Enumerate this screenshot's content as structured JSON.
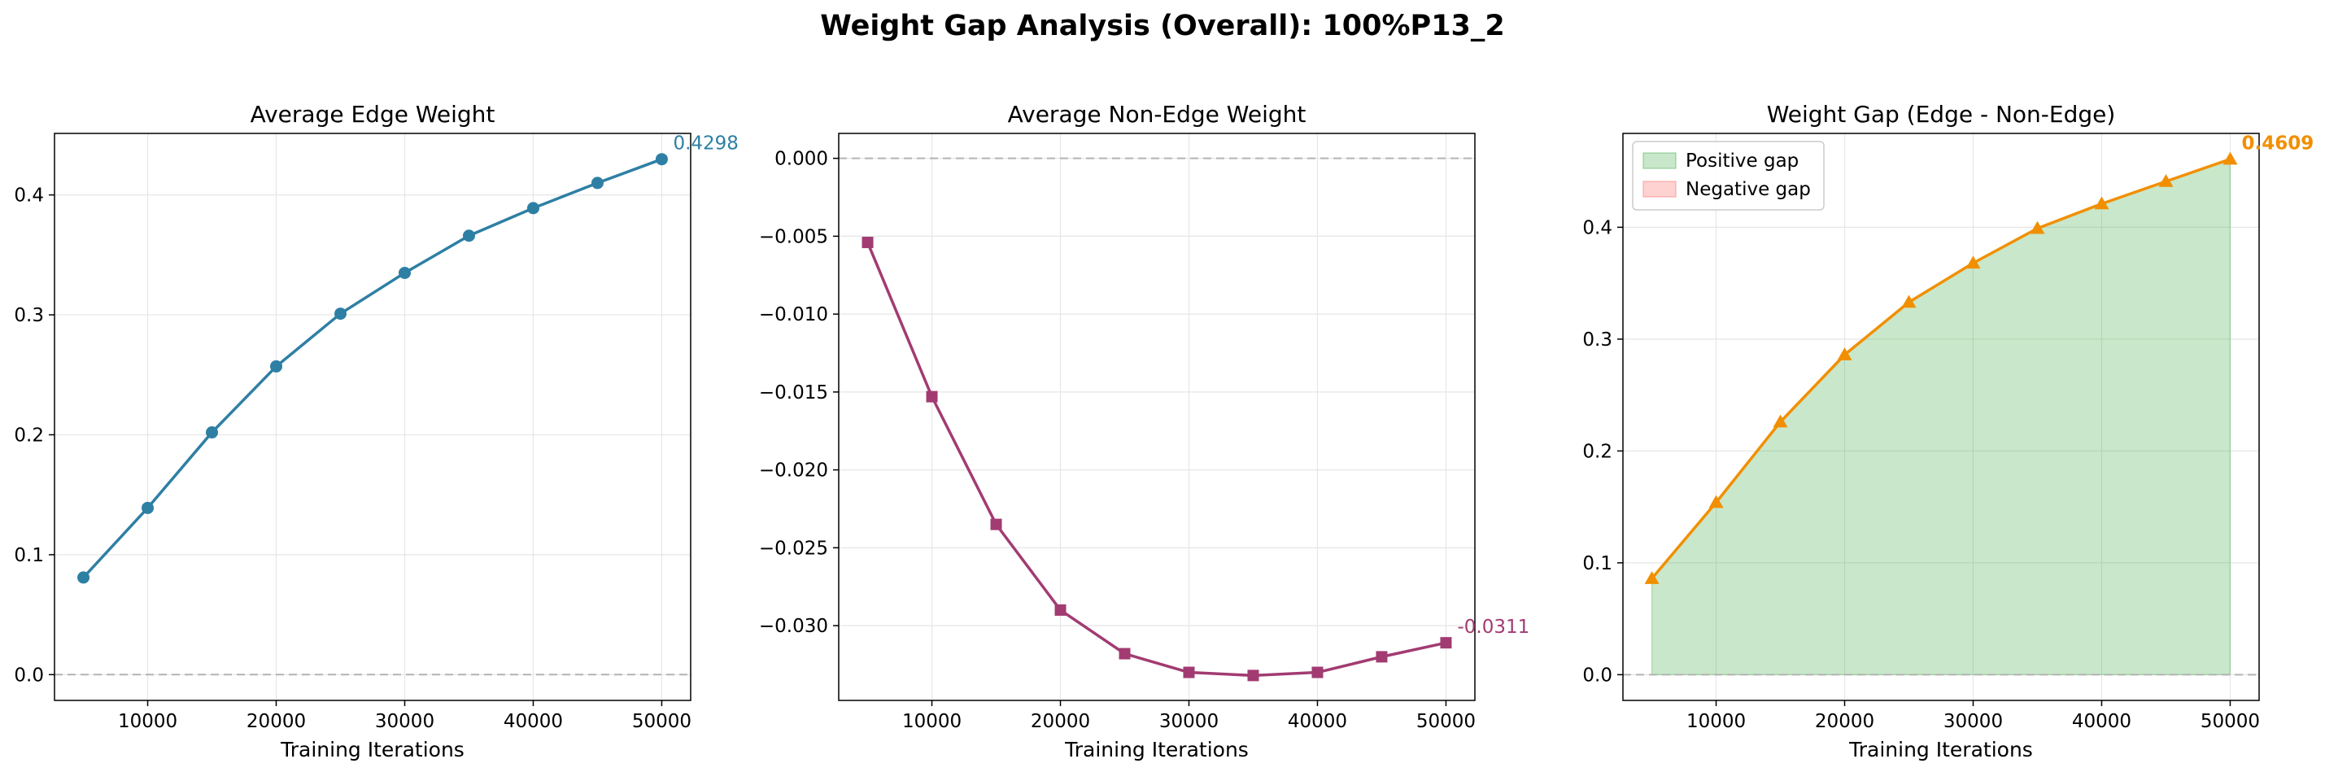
{
  "figure": {
    "title": "Weight Gap Analysis (Overall): 100%P13_2"
  },
  "chart_data": [
    {
      "type": "line",
      "title": "Average Edge Weight",
      "xlabel": "Training Iterations",
      "ylabel": "",
      "x": [
        5000,
        10000,
        15000,
        20000,
        25000,
        30000,
        35000,
        40000,
        45000,
        50000
      ],
      "series": [
        {
          "values": [
            0.081,
            0.139,
            0.202,
            0.257,
            0.301,
            0.335,
            0.366,
            0.389,
            0.41,
            0.4298
          ],
          "color": "#2e7fa4",
          "marker": "circle"
        }
      ],
      "xlim": [
        2750,
        52250
      ],
      "ylim": [
        -0.0215,
        0.4513
      ],
      "xticks": [
        10000,
        20000,
        30000,
        40000,
        50000
      ],
      "yticks": [
        0.0,
        0.1,
        0.2,
        0.3,
        0.4
      ],
      "ytick_labels": [
        "0.0",
        "0.1",
        "0.2",
        "0.3",
        "0.4"
      ],
      "xtick_labels": [
        "10000",
        "20000",
        "30000",
        "40000",
        "50000"
      ],
      "reference_line": 0,
      "grid": true,
      "annotation": {
        "text": "0.4298",
        "color": "#2e7fa4",
        "bold": false
      }
    },
    {
      "type": "line",
      "title": "Average Non-Edge Weight",
      "xlabel": "Training Iterations",
      "ylabel": "",
      "x": [
        5000,
        10000,
        15000,
        20000,
        25000,
        30000,
        35000,
        40000,
        45000,
        50000
      ],
      "series": [
        {
          "values": [
            -0.0054,
            -0.0153,
            -0.0235,
            -0.029,
            -0.0318,
            -0.033,
            -0.0332,
            -0.033,
            -0.032,
            -0.0311
          ],
          "color": "#a23b72",
          "marker": "square"
        }
      ],
      "xlim": [
        2750,
        52250
      ],
      "ylim": [
        -0.0348,
        0.0016
      ],
      "xticks": [
        10000,
        20000,
        30000,
        40000,
        50000
      ],
      "yticks": [
        0.0,
        -0.005,
        -0.01,
        -0.015,
        -0.02,
        -0.025,
        -0.03
      ],
      "ytick_labels": [
        "0.000",
        "−0.005",
        "−0.010",
        "−0.015",
        "−0.020",
        "−0.025",
        "−0.030"
      ],
      "xtick_labels": [
        "10000",
        "20000",
        "30000",
        "40000",
        "50000"
      ],
      "reference_line": 0,
      "grid": true,
      "annotation": {
        "text": "-0.0311",
        "color": "#a23b72",
        "bold": false
      }
    },
    {
      "type": "area",
      "title": "Weight Gap (Edge - Non-Edge)",
      "xlabel": "Training Iterations",
      "ylabel": "",
      "x": [
        5000,
        10000,
        15000,
        20000,
        25000,
        30000,
        35000,
        40000,
        45000,
        50000
      ],
      "series": [
        {
          "values": [
            0.086,
            0.154,
            0.226,
            0.286,
            0.333,
            0.368,
            0.399,
            0.421,
            0.441,
            0.4609
          ],
          "color": "#f18f01",
          "marker": "triangle"
        }
      ],
      "xlim": [
        2750,
        52250
      ],
      "ylim": [
        -0.023,
        0.4839
      ],
      "xticks": [
        10000,
        20000,
        30000,
        40000,
        50000
      ],
      "yticks": [
        0.0,
        0.1,
        0.2,
        0.3,
        0.4
      ],
      "ytick_labels": [
        "0.0",
        "0.1",
        "0.2",
        "0.3",
        "0.4"
      ],
      "xtick_labels": [
        "10000",
        "20000",
        "30000",
        "40000",
        "50000"
      ],
      "reference_line": 0,
      "grid": true,
      "fill": {
        "positive_color": "#4caf50",
        "negative_color": "#ff6b6b"
      },
      "legend": {
        "position": "top-left",
        "entries": [
          {
            "label": "Positive gap",
            "color": "#4caf50"
          },
          {
            "label": "Negative gap",
            "color": "#ff6b6b"
          }
        ]
      },
      "annotation": {
        "text": "0.4609",
        "color": "#f18f01",
        "bold": true
      }
    }
  ]
}
